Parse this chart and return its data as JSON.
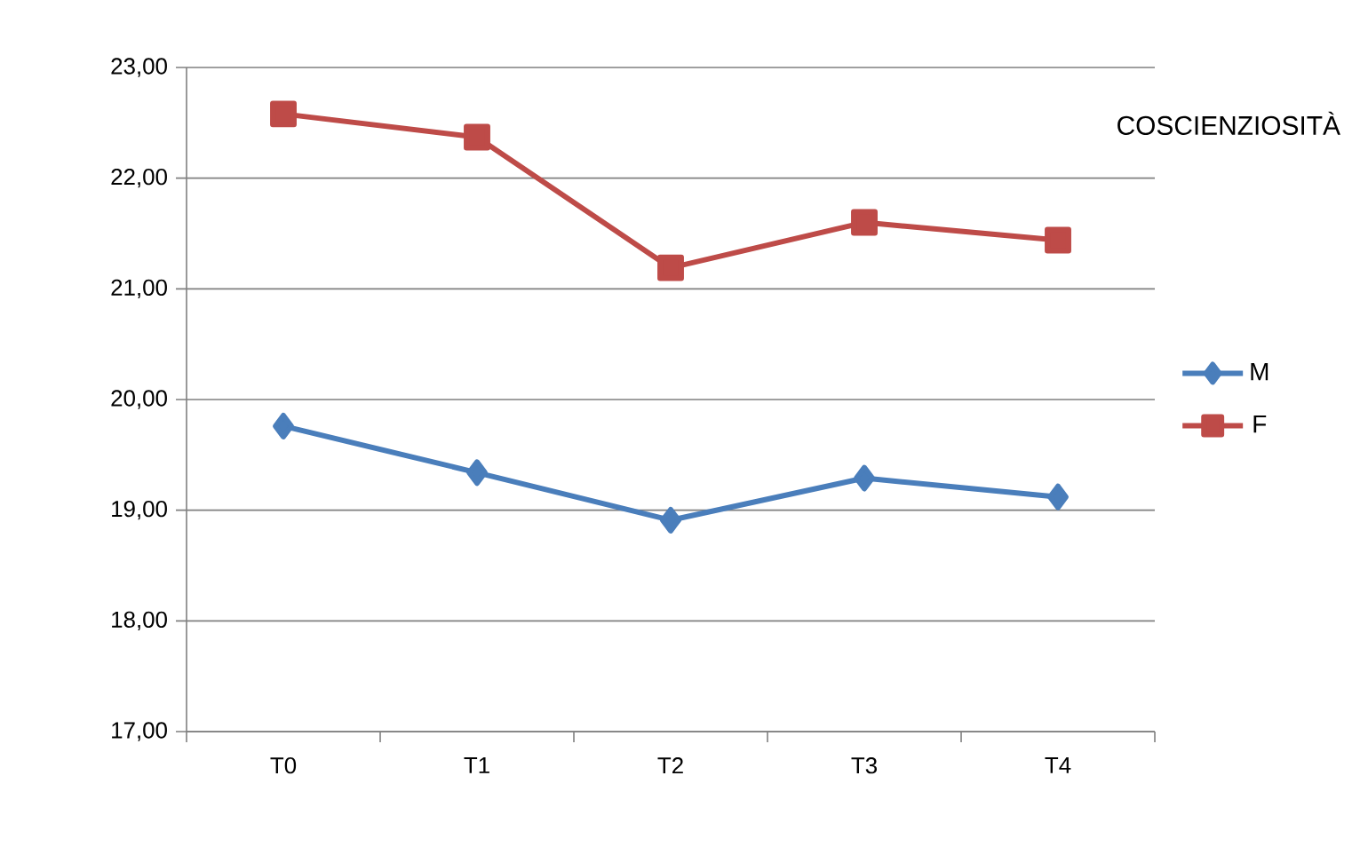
{
  "chart_data": {
    "type": "line",
    "title": "COSCIENZIOSITÀ",
    "categories": [
      "T0",
      "T1",
      "T2",
      "T3",
      "T4"
    ],
    "series": [
      {
        "name": "M",
        "color": "#4a7ebb",
        "marker": "diamond",
        "values": [
          19.76,
          19.34,
          18.91,
          19.29,
          19.12
        ]
      },
      {
        "name": "F",
        "color": "#be4b48",
        "marker": "square",
        "values": [
          22.58,
          22.37,
          21.19,
          21.6,
          21.44
        ]
      }
    ],
    "ylim": [
      17,
      23
    ],
    "yticks": [
      {
        "value": 17,
        "label": "17,00"
      },
      {
        "value": 18,
        "label": "18,00"
      },
      {
        "value": 19,
        "label": "19,00"
      },
      {
        "value": 20,
        "label": "20,00"
      },
      {
        "value": 21,
        "label": "21,00"
      },
      {
        "value": 22,
        "label": "22,00"
      },
      {
        "value": 23,
        "label": "23,00"
      }
    ],
    "grid": "y",
    "legend": "right"
  }
}
